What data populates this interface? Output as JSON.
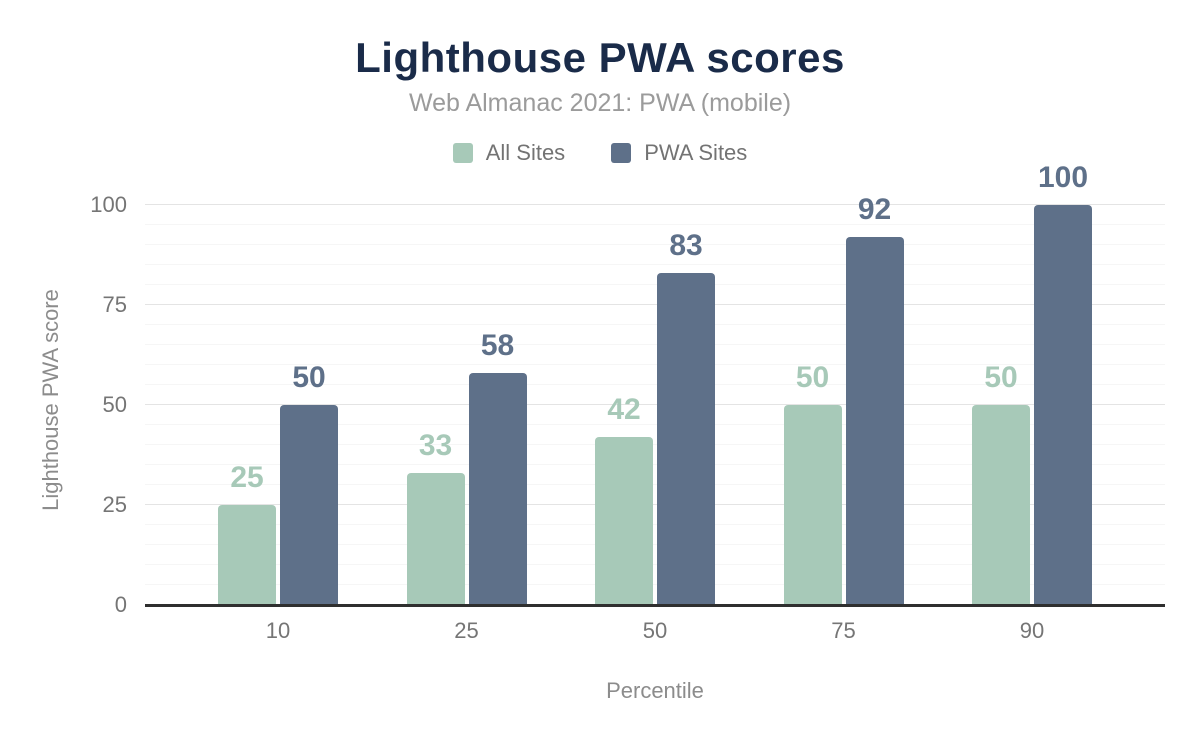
{
  "chart_data": {
    "type": "bar",
    "title": "Lighthouse PWA scores",
    "subtitle": "Web Almanac 2021: PWA (mobile)",
    "xlabel": "Percentile",
    "ylabel": "Lighthouse PWA score",
    "categories": [
      "10",
      "25",
      "50",
      "75",
      "90"
    ],
    "series": [
      {
        "name": "All Sites",
        "color": "#a7c9b8",
        "values": [
          25,
          33,
          42,
          50,
          50
        ]
      },
      {
        "name": "PWA Sites",
        "color": "#5e7089",
        "values": [
          50,
          58,
          83,
          92,
          100
        ]
      }
    ],
    "ylim": [
      0,
      100
    ],
    "yticks": [
      0,
      25,
      50,
      75,
      100
    ],
    "grid": {
      "on": true,
      "minor_interval": 5,
      "major_interval": 25,
      "minor_color": "#f6f6f6",
      "major_color": "#e4e4e4",
      "baseline_color": "#2f2f2f"
    },
    "legend_position": "top",
    "data_labels": "above-bars, colored per series, bold",
    "colors": {
      "background": "#ffffff",
      "title_text": "#1a2b49",
      "subtitle_text": "#9b9b9b",
      "tick_text": "#757575",
      "axis_title_text": "#8c8c8c",
      "legend_text": "#737373"
    }
  }
}
